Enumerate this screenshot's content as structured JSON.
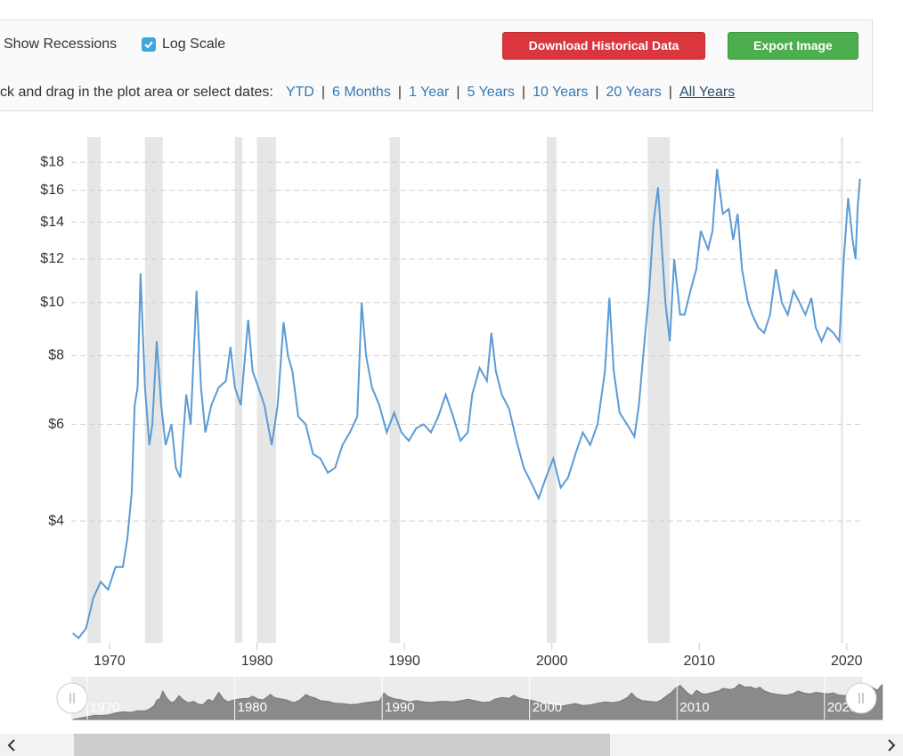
{
  "ui": {
    "show_recessions": "Show Recessions",
    "log_scale": "Log Scale",
    "download": "Download Historical Data",
    "export": "Export Image",
    "range_prompt": "ck and drag in the plot area or select dates:",
    "ranges": [
      "YTD",
      "6 Months",
      "1 Year",
      "5 Years",
      "10 Years",
      "20 Years",
      "All Years"
    ]
  },
  "chart_data": {
    "type": "line",
    "log_scale": true,
    "grid": true,
    "xlim": [
      1967.4,
      2021.1
    ],
    "ylim": [
      2.4,
      20
    ],
    "xticks": [
      1970,
      1980,
      1990,
      2000,
      2010,
      2020
    ],
    "yticks": [
      {
        "value": 4,
        "label": "$4"
      },
      {
        "value": 6,
        "label": "$6"
      },
      {
        "value": 8,
        "label": "$8"
      },
      {
        "value": 10,
        "label": "$10"
      },
      {
        "value": 12,
        "label": "$12"
      },
      {
        "value": 14,
        "label": "$14"
      },
      {
        "value": 16,
        "label": "$16"
      },
      {
        "value": 18,
        "label": "$18"
      }
    ],
    "recessions": [
      [
        1968.5,
        1969.4
      ],
      [
        1972.4,
        1973.6
      ],
      [
        1978.5,
        1979.0
      ],
      [
        1980.0,
        1981.3
      ],
      [
        1989.0,
        1989.7
      ],
      [
        1999.65,
        2000.3
      ],
      [
        2006.5,
        2008.0
      ],
      [
        2019.6,
        2019.75
      ]
    ],
    "x": [
      1967.5,
      1967.9,
      1968.4,
      1968.9,
      1969.4,
      1969.9,
      1970.4,
      1970.9,
      1971.2,
      1971.5,
      1971.7,
      1971.9,
      1972.1,
      1972.4,
      1972.7,
      1972.9,
      1973.2,
      1973.5,
      1973.8,
      1974.2,
      1974.5,
      1974.8,
      1975.2,
      1975.5,
      1975.9,
      1976.2,
      1976.5,
      1976.9,
      1977.4,
      1977.9,
      1978.2,
      1978.5,
      1978.9,
      1979.4,
      1979.7,
      1980.1,
      1980.5,
      1981.0,
      1981.4,
      1981.8,
      1982.1,
      1982.4,
      1982.8,
      1983.3,
      1983.8,
      1984.3,
      1984.8,
      1985.3,
      1985.8,
      1986.3,
      1986.8,
      1987.1,
      1987.4,
      1987.8,
      1988.3,
      1988.8,
      1989.3,
      1989.8,
      1990.3,
      1990.8,
      1991.3,
      1991.8,
      1992.3,
      1992.8,
      1993.3,
      1993.8,
      1994.3,
      1994.6,
      1995.1,
      1995.6,
      1995.9,
      1996.2,
      1996.6,
      1997.1,
      1997.6,
      1998.1,
      1998.6,
      1999.1,
      1999.6,
      2000.1,
      2000.6,
      2001.1,
      2001.6,
      2002.1,
      2002.6,
      2003.1,
      2003.6,
      2003.9,
      2004.2,
      2004.6,
      2005.1,
      2005.6,
      2005.9,
      2006.2,
      2006.6,
      2006.9,
      2007.2,
      2007.7,
      2008.0,
      2008.3,
      2008.7,
      2009.0,
      2009.4,
      2009.8,
      2010.1,
      2010.6,
      2010.9,
      2011.2,
      2011.6,
      2012.0,
      2012.3,
      2012.6,
      2012.9,
      2013.3,
      2013.6,
      2014.0,
      2014.4,
      2014.8,
      2015.2,
      2015.6,
      2016.0,
      2016.4,
      2016.8,
      2017.2,
      2017.6,
      2017.9,
      2018.3,
      2018.7,
      2019.1,
      2019.5,
      2019.8,
      2020.1,
      2020.4,
      2020.6,
      2020.75,
      2020.9
    ],
    "series": [
      {
        "color": "#5b9bd5",
        "values": [
          2.5,
          2.45,
          2.55,
          2.9,
          3.1,
          3.0,
          3.3,
          3.3,
          3.7,
          4.5,
          6.5,
          7.0,
          11.3,
          7.0,
          5.5,
          6.0,
          8.5,
          6.5,
          5.5,
          6.0,
          5.0,
          4.8,
          6.8,
          6.0,
          10.5,
          7.0,
          5.8,
          6.5,
          7.0,
          7.2,
          8.3,
          7.0,
          6.5,
          9.3,
          7.5,
          7.0,
          6.5,
          5.5,
          6.5,
          9.2,
          8.0,
          7.5,
          6.2,
          6.0,
          5.3,
          5.2,
          4.9,
          5.0,
          5.5,
          5.8,
          6.2,
          10.0,
          8.0,
          7.0,
          6.5,
          5.8,
          6.3,
          5.8,
          5.6,
          5.9,
          6.0,
          5.8,
          6.2,
          6.8,
          6.2,
          5.6,
          5.8,
          6.8,
          7.6,
          7.2,
          8.8,
          7.5,
          6.8,
          6.4,
          5.6,
          5.0,
          4.7,
          4.4,
          4.8,
          5.2,
          4.6,
          4.8,
          5.3,
          5.8,
          5.5,
          6.0,
          7.5,
          10.2,
          7.5,
          6.3,
          6.0,
          5.7,
          6.5,
          8.0,
          10.5,
          14.0,
          16.2,
          10.0,
          8.5,
          12.0,
          9.5,
          9.5,
          10.5,
          11.5,
          13.5,
          12.5,
          13.5,
          17.5,
          14.5,
          14.8,
          13.0,
          14.5,
          11.5,
          10.0,
          9.5,
          9.0,
          8.8,
          9.5,
          11.5,
          10.0,
          9.5,
          10.5,
          10.0,
          9.5,
          10.2,
          9.0,
          8.5,
          9.0,
          8.8,
          8.5,
          12.0,
          15.5,
          13.0,
          12.0,
          15.0,
          16.8
        ]
      }
    ]
  }
}
